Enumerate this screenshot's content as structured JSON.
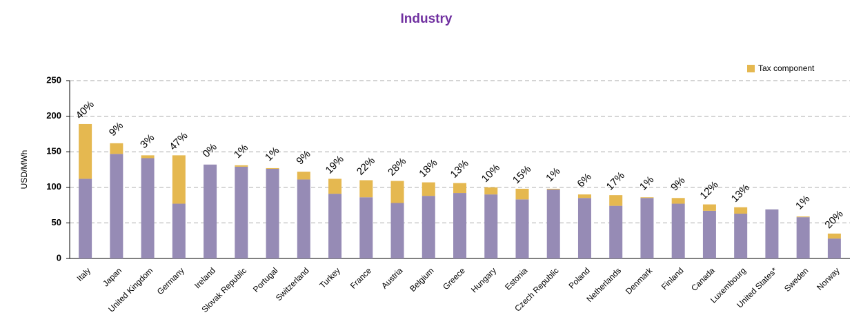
{
  "chart_data": {
    "type": "stacked_bar",
    "title": "Industry",
    "y_label": "USD/MWh",
    "categories": [
      "Italy",
      "Japan",
      "United Kingdom",
      "Germany",
      "Ireland",
      "Slovak Republic",
      "Portugal",
      "Switzerland",
      "Turkey",
      "France",
      "Austria",
      "Belgium",
      "Greece",
      "Hungary",
      "Estonia",
      "Czech Republic",
      "Poland",
      "Netherlands",
      "Denmark",
      "Finland",
      "Canada",
      "Luxembourg",
      "United States*",
      "Sweden",
      "Norway"
    ],
    "series": [
      {
        "color": "#968bb5",
        "values": [
          112,
          147,
          141,
          77,
          132,
          129,
          126,
          111,
          91,
          86,
          78,
          88,
          92,
          90,
          83,
          97,
          85,
          74,
          85,
          77,
          67,
          63,
          69,
          58,
          28
        ]
      },
      {
        "name": "Tax component",
        "color": "#e5b850",
        "values": [
          77,
          15,
          4,
          68,
          0,
          2,
          1,
          11,
          21,
          24,
          31,
          19,
          14,
          10,
          15,
          1,
          5,
          15,
          1,
          8,
          9,
          9,
          0,
          1,
          7
        ]
      }
    ],
    "annotations": [
      "40%",
      "9%",
      "3%",
      "47%",
      "0%",
      "1%",
      "1%",
      "9%",
      "19%",
      "22%",
      "28%",
      "18%",
      "13%",
      "10%",
      "15%",
      "1%",
      "6%",
      "17%",
      "1%",
      "9%",
      "12%",
      "13%",
      null,
      "1%",
      "20%"
    ],
    "ylim": [
      0,
      250
    ],
    "yticks": [
      0,
      50,
      100,
      150,
      200,
      250
    ],
    "grid": true,
    "legend": "top-right"
  }
}
